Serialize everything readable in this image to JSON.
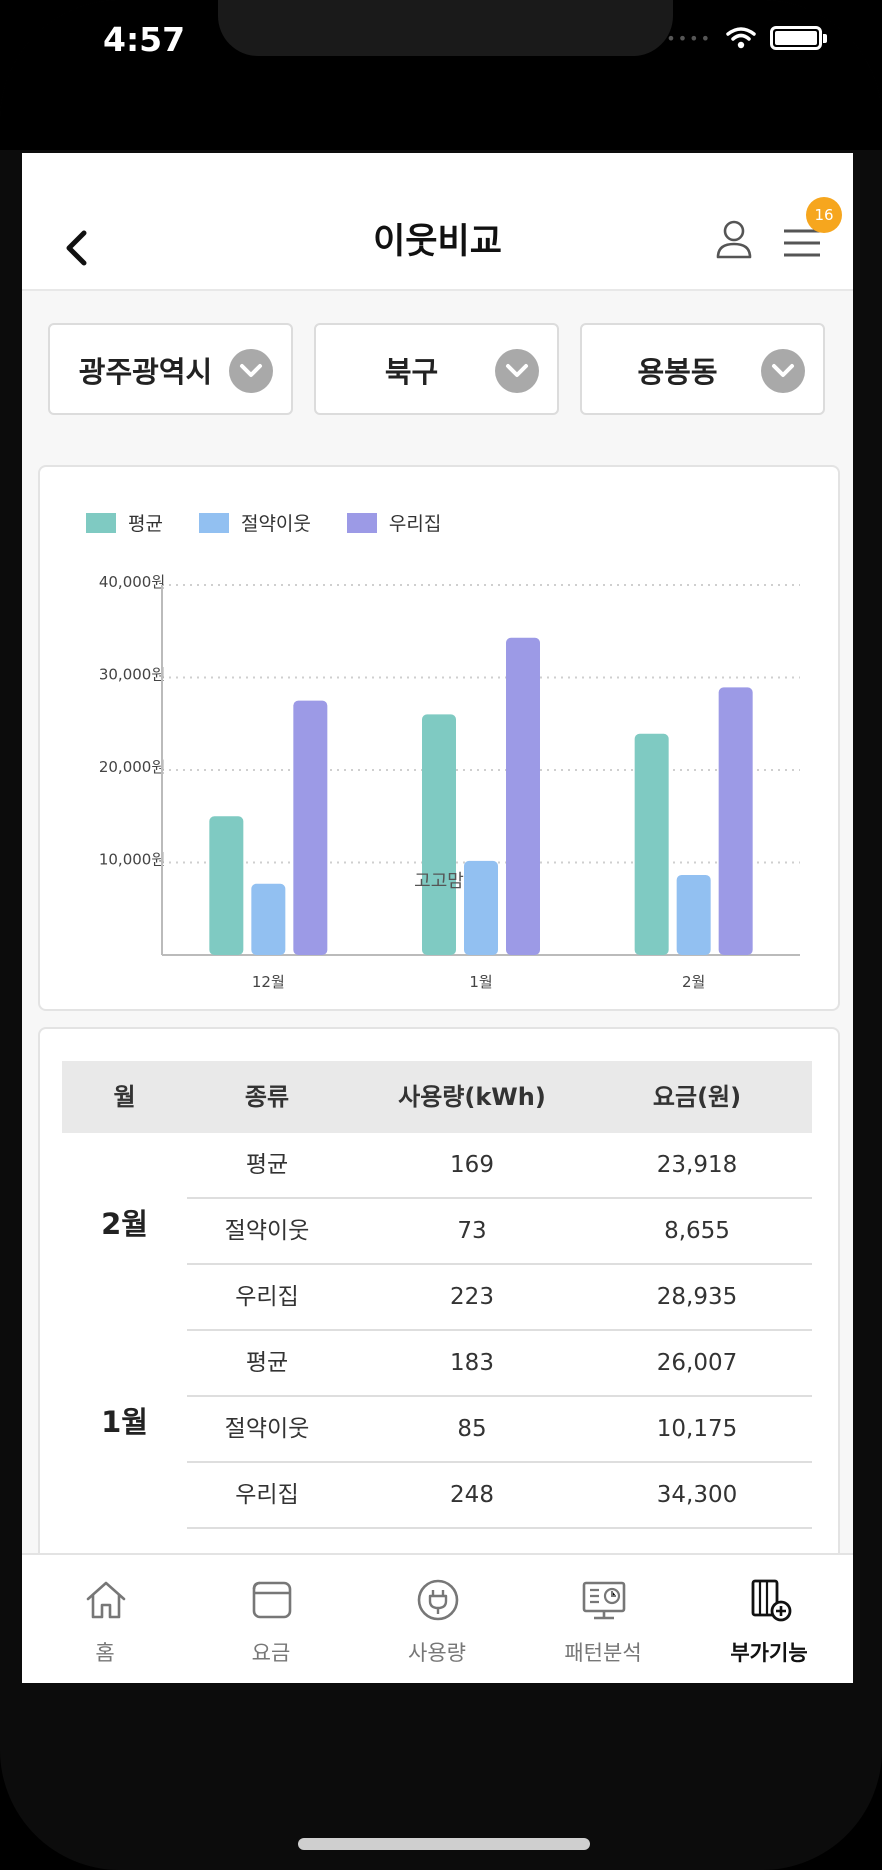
{
  "status": {
    "time": "4:57"
  },
  "header": {
    "title": "이웃비교",
    "badge": "16"
  },
  "selects": [
    {
      "value": "광주광역시"
    },
    {
      "value": "북구"
    },
    {
      "value": "용봉동"
    }
  ],
  "colors": {
    "avg": "#7fcac2",
    "saving": "#92c0f1",
    "mine": "#9c9ae6",
    "badge": "#f6a61e"
  },
  "chart_data": {
    "type": "bar",
    "categories": [
      "12월",
      "1월",
      "2월"
    ],
    "series": [
      {
        "name": "평균",
        "values": [
          15000,
          26007,
          23918
        ]
      },
      {
        "name": "절약이웃",
        "values": [
          7700,
          10175,
          8655
        ]
      },
      {
        "name": "우리집",
        "values": [
          27500,
          34300,
          28935
        ]
      }
    ],
    "yticks": [
      "10,000원",
      "20,000원",
      "30,000원",
      "40,000원"
    ],
    "ylim": [
      0,
      40000
    ],
    "grid": true,
    "legend": "top-left",
    "watermark": "고고맘"
  },
  "table": {
    "headers": [
      "월",
      "종류",
      "사용량(kWh)",
      "요금(원)"
    ],
    "groups": [
      {
        "month": "2월",
        "rows": [
          {
            "type": "평균",
            "usage": "169",
            "fee": "23,918"
          },
          {
            "type": "절약이웃",
            "usage": "73",
            "fee": "8,655"
          },
          {
            "type": "우리집",
            "usage": "223",
            "fee": "28,935"
          }
        ]
      },
      {
        "month": "1월",
        "rows": [
          {
            "type": "평균",
            "usage": "183",
            "fee": "26,007"
          },
          {
            "type": "절약이웃",
            "usage": "85",
            "fee": "10,175"
          },
          {
            "type": "우리집",
            "usage": "248",
            "fee": "34,300"
          }
        ]
      }
    ]
  },
  "tabs": [
    {
      "label": "홈",
      "icon": "home-icon"
    },
    {
      "label": "요금",
      "icon": "wallet-icon"
    },
    {
      "label": "사용량",
      "icon": "plug-icon"
    },
    {
      "label": "패턴분석",
      "icon": "monitor-icon"
    },
    {
      "label": "부가기능",
      "icon": "addon-icon",
      "active": true
    }
  ]
}
